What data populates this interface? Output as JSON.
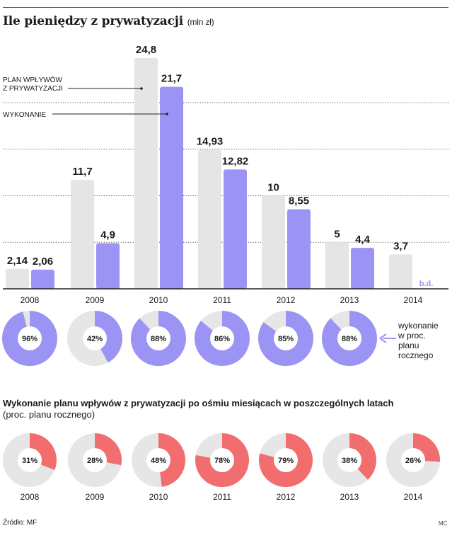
{
  "title": "Ile pieniędzy z prywatyzacji",
  "title_unit": "(mln zł)",
  "subtitle_bold": "Wykonanie planu wpływów z prywatyzacji po ośmiu miesiącach w poszczególnych latach",
  "subtitle_unit": "(proc. planu rocznego)",
  "source": "Źródło: MF",
  "author": "MC",
  "colors": {
    "plan": "#e5e5e5",
    "execution": "#9b94f5",
    "eight_months": "#f26d6d",
    "ring_bg": "#e6e6e6"
  },
  "chart_data": [
    {
      "type": "bar",
      "categories": [
        "2008",
        "2009",
        "2010",
        "2011",
        "2012",
        "2013",
        "2014"
      ],
      "series": [
        {
          "name": "PLAN WPŁYWÓW Z PRYWATYZACJI",
          "name_lines": [
            "PLAN WPŁYWÓW",
            "Z PRYWATYZACJI"
          ],
          "values": [
            2.14,
            11.7,
            24.8,
            14.93,
            10,
            5,
            3.7
          ],
          "labels": [
            "2,14",
            "11,7",
            "24,8",
            "14,93",
            "10",
            "5",
            "3,7"
          ]
        },
        {
          "name": "WYKONANIE",
          "name_lines": [
            "WYKONANIE"
          ],
          "values": [
            2.06,
            4.9,
            21.7,
            12.82,
            8.55,
            4.4,
            null
          ],
          "labels": [
            "2,06",
            "4,9",
            "21,7",
            "12,82",
            "8,55",
            "4,4",
            "b.d."
          ]
        }
      ],
      "ylim": [
        0,
        25
      ],
      "grid": true
    },
    {
      "type": "pie",
      "description_lines": [
        "wykonanie",
        "w proc.",
        "planu",
        "rocznego"
      ],
      "categories": [
        "2008",
        "2009",
        "2010",
        "2011",
        "2012",
        "2013"
      ],
      "values": [
        96,
        42,
        88,
        86,
        85,
        88
      ],
      "labels": [
        "96%",
        "42%",
        "88%",
        "86%",
        "85%",
        "88%"
      ]
    },
    {
      "type": "pie",
      "categories": [
        "2008",
        "2009",
        "2010",
        "2011",
        "2012",
        "2013",
        "2014"
      ],
      "values": [
        31,
        28,
        48,
        78,
        79,
        38,
        26
      ],
      "labels": [
        "31%",
        "28%",
        "48%",
        "78%",
        "79%",
        "38%",
        "26%"
      ]
    }
  ]
}
